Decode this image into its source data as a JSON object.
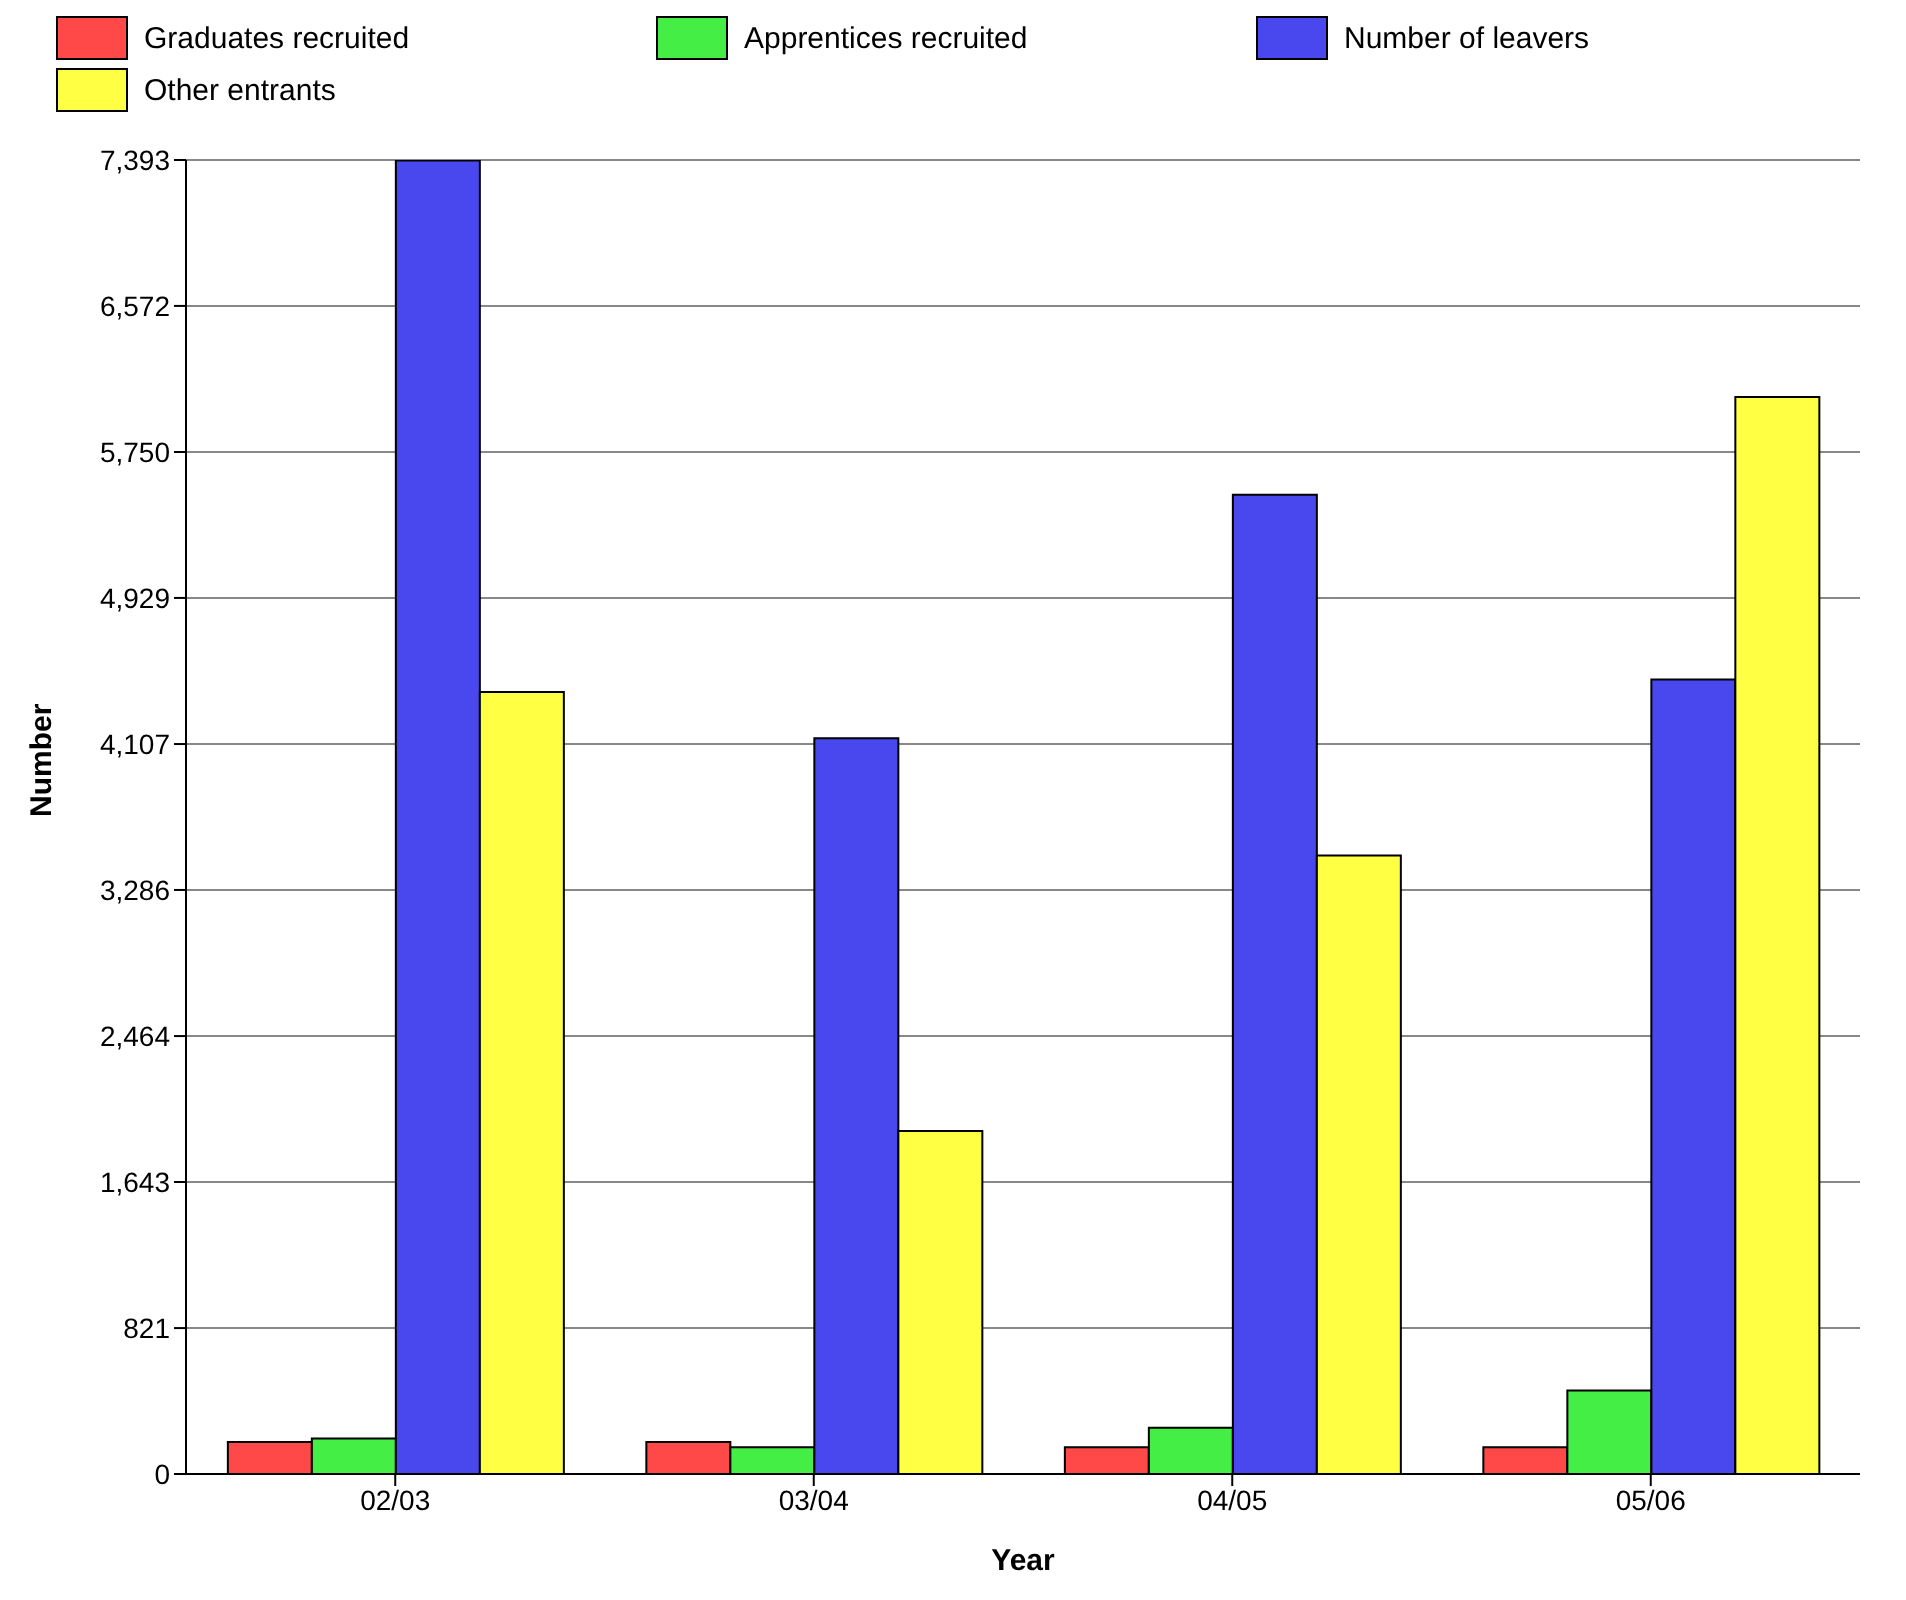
{
  "chart_data": {
    "type": "bar",
    "xlabel": "Year",
    "ylabel": "Number",
    "categories": [
      "02/03",
      "03/04",
      "04/05",
      "05/06"
    ],
    "series": [
      {
        "name": "Graduates recruited",
        "color": "#ff4848",
        "values": [
          180,
          180,
          150,
          150
        ]
      },
      {
        "name": "Apprentices recruited",
        "color": "#44ee44",
        "values": [
          200,
          150,
          260,
          470
        ]
      },
      {
        "name": "Number of leavers",
        "color": "#4848ee",
        "values": [
          7390,
          4140,
          5510,
          4470
        ]
      },
      {
        "name": "Other entrants",
        "color": "#ffff44",
        "values": [
          4400,
          1930,
          3480,
          6060
        ]
      }
    ],
    "ylim": [
      0,
      7393
    ],
    "yticks": [
      0,
      {
        "value": 821,
        "label": "821"
      },
      {
        "value": 1643,
        "label": "1,643"
      },
      {
        "value": 2464,
        "label": "2,464"
      },
      {
        "value": 3286,
        "label": "3,286"
      },
      {
        "value": 4107,
        "label": "4,107"
      },
      {
        "value": 4929,
        "label": "4,929"
      },
      {
        "value": 5750,
        "label": "5,750"
      },
      {
        "value": 6572,
        "label": "6,572"
      },
      {
        "value": 7393,
        "label": "7,393"
      }
    ],
    "grid": "y",
    "legend": "top left"
  }
}
